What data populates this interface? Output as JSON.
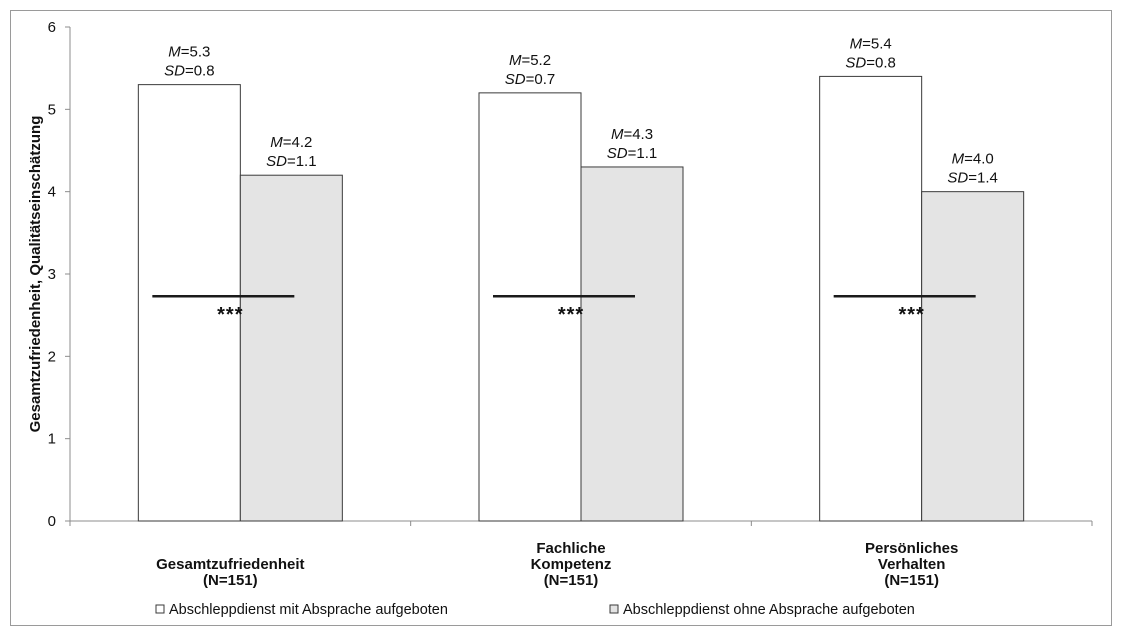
{
  "chart_data": {
    "type": "bar",
    "ylabel": "Gesamtzufriedenheit, Qualitätseinschätzung",
    "ylim": [
      0,
      6
    ],
    "yticks": [
      0,
      1,
      2,
      3,
      4,
      5,
      6
    ],
    "grid": false,
    "legend_position": "bottom",
    "categories": [
      [
        "Gesamtzufriedenheit",
        "(N=151)"
      ],
      [
        "Fachliche",
        "Kompetenz",
        "(N=151)"
      ],
      [
        "Persönliches",
        "Verhalten",
        "(N=151)"
      ]
    ],
    "series": [
      {
        "name": "Abschleppdienst mit Absprache aufgeboten",
        "color": "#ffffff",
        "values": [
          5.3,
          5.2,
          5.4
        ],
        "labels": [
          {
            "m": "=5.3",
            "sd": "=0.8"
          },
          {
            "m": "=5.2",
            "sd": "=0.7"
          },
          {
            "m": "=5.4",
            "sd": "=0.8"
          }
        ]
      },
      {
        "name": "Abschleppdienst ohne Absprache aufgeboten",
        "color": "#e4e4e4",
        "values": [
          4.2,
          4.3,
          4.0
        ],
        "labels": [
          {
            "m": "=4.2",
            "sd": "=1.1"
          },
          {
            "m": "=4.3",
            "sd": "=1.1"
          },
          {
            "m": "=4.0",
            "sd": "=1.4"
          }
        ]
      }
    ],
    "label_prefix_m": "M",
    "label_prefix_sd": "SD",
    "significance": {
      "marker": "***",
      "y": 2.73
    }
  }
}
